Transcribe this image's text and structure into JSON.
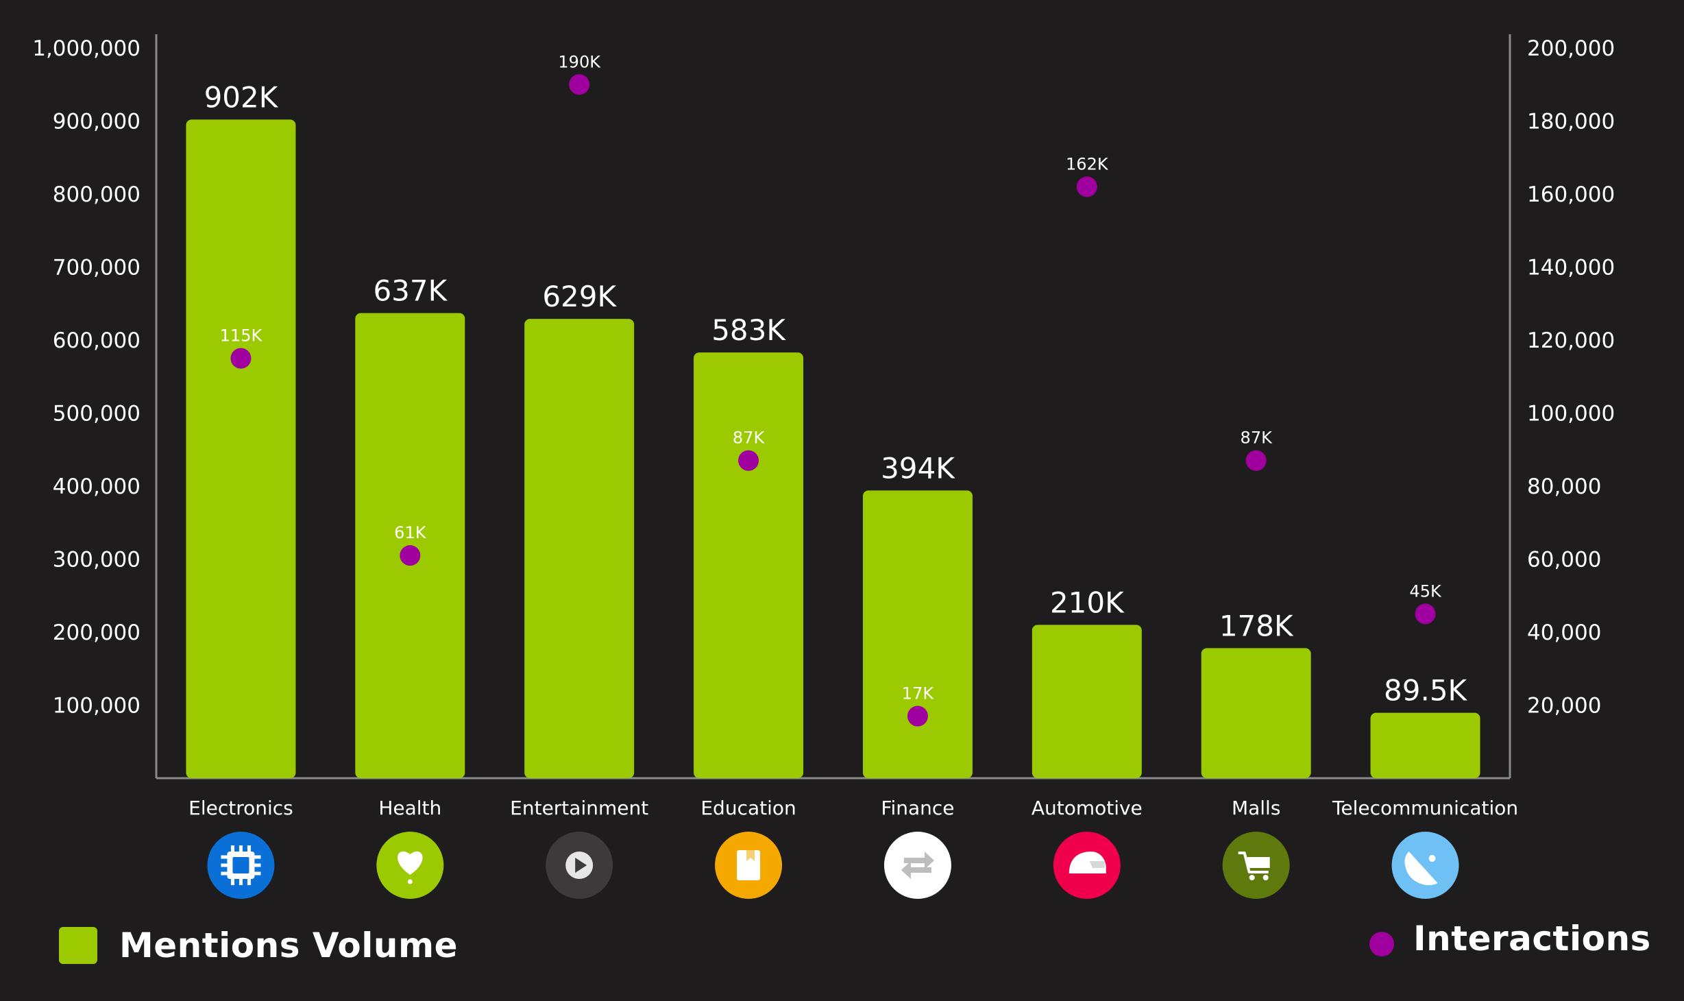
{
  "chart_data": {
    "type": "bar",
    "categories": [
      "Electronics",
      "Health",
      "Entertainment",
      "Education",
      "Finance",
      "Automotive",
      "Malls",
      "Telecommunication"
    ],
    "series": [
      {
        "name": "Mentions Volume",
        "type": "bar",
        "axis": "left",
        "values": [
          902000,
          637000,
          629000,
          583000,
          394000,
          210000,
          178000,
          89500
        ],
        "labels": [
          "902K",
          "637K",
          "629K",
          "583K",
          "394K",
          "210K",
          "178K",
          "89.5K"
        ],
        "color": "#9bca00"
      },
      {
        "name": "Interactions",
        "type": "scatter",
        "axis": "right",
        "values": [
          115000,
          61000,
          190000,
          87000,
          17000,
          162000,
          87000,
          45000
        ],
        "labels": [
          "115K",
          "61K",
          "190K",
          "87K",
          "17K",
          "162K",
          "87K",
          "45K"
        ],
        "color": "#a0009f"
      }
    ],
    "y_left": {
      "ylim": [
        0,
        1000000
      ],
      "ticks": [
        100000,
        200000,
        300000,
        400000,
        500000,
        600000,
        700000,
        800000,
        900000,
        1000000
      ],
      "tick_labels": [
        "100,000",
        "200,000",
        "300,000",
        "400,000",
        "500,000",
        "600,000",
        "700,000",
        "800,000",
        "900,000",
        "1,000,000"
      ]
    },
    "y_right": {
      "ylim": [
        0,
        200000
      ],
      "ticks": [
        20000,
        40000,
        60000,
        80000,
        100000,
        120000,
        140000,
        160000,
        180000,
        200000
      ],
      "tick_labels": [
        "20,000",
        "40,000",
        "60,000",
        "80,000",
        "100,000",
        "120,000",
        "140,000",
        "160,000",
        "180,000",
        "200,000"
      ]
    },
    "category_icons": [
      {
        "name": "chip-icon",
        "bg": "#0a6fd6",
        "fg": "#ffffff"
      },
      {
        "name": "heart-icon",
        "bg": "#9bca00",
        "fg": "#ffffff"
      },
      {
        "name": "play-icon",
        "bg": "#3c3a3a",
        "fg": "#e6e6e6"
      },
      {
        "name": "book-icon",
        "bg": "#f5a800",
        "fg": "#ffffff"
      },
      {
        "name": "exchange-icon",
        "bg": "#ffffff",
        "fg": "#bdbdbd"
      },
      {
        "name": "helmet-icon",
        "bg": "#f0004c",
        "fg": "#ffffff"
      },
      {
        "name": "cart-icon",
        "bg": "#5f7a0c",
        "fg": "#ffffff"
      },
      {
        "name": "satellite-icon",
        "bg": "#6ec0f5",
        "fg": "#ffffff"
      }
    ],
    "background": "#1e1c1c",
    "grid": false,
    "legend_position": "bottom"
  },
  "legend": {
    "bars_label": "Mentions Volume",
    "points_label": "Interactions"
  }
}
